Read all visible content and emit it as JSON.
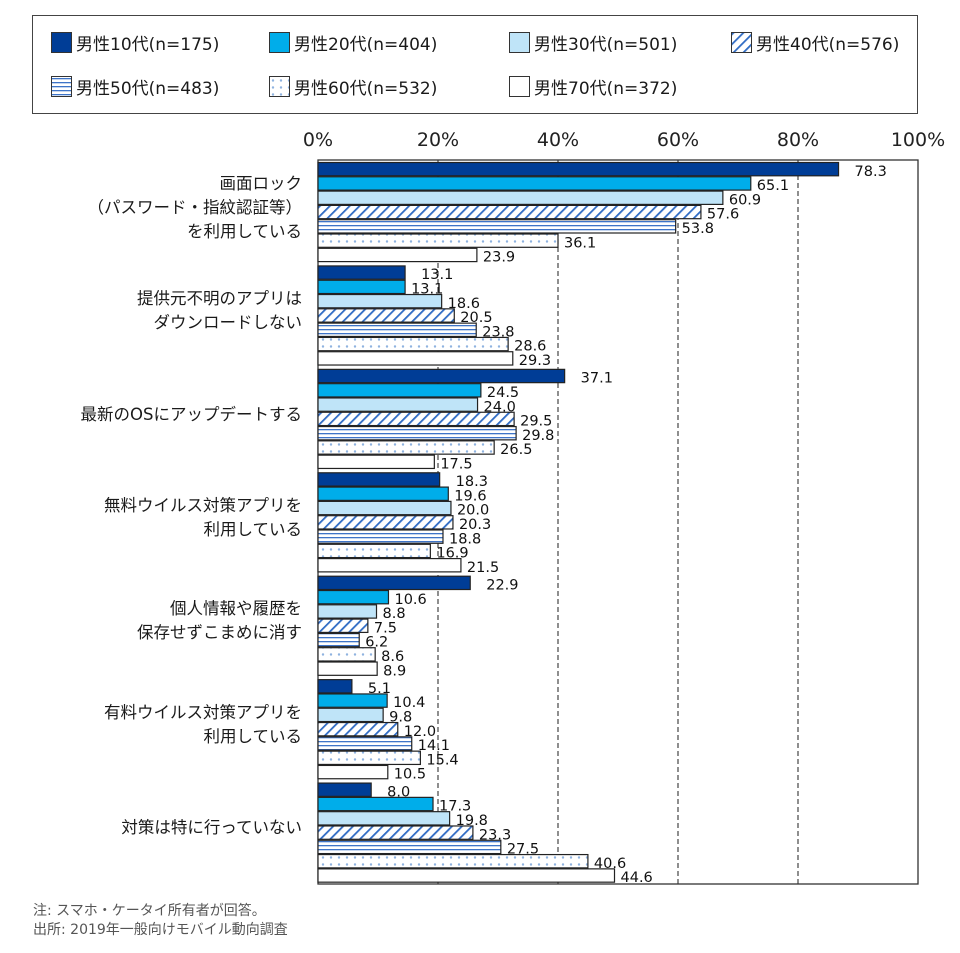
{
  "chart_data": {
    "type": "bar",
    "orientation": "horizontal",
    "xlabel": "",
    "ylabel": "",
    "xlim": [
      0,
      100
    ],
    "tick_labels": [
      "0%",
      "20%",
      "40%",
      "60%",
      "80%",
      "100%"
    ],
    "grid": "dashed vertical at 20%, 40%, 60%, 80%",
    "legend_position": "top",
    "categories": [
      "画面ロック\n（パスワード・指紋認証等）\nを利用している",
      "提供元不明のアプリは\nダウンロードしない",
      "最新のOSにアップデートする",
      "無料ウイルス対策アプリを\n利用している",
      "個人情報や履歴を\n保存せずこまめに消す",
      "有料ウイルス対策アプリを\n利用している",
      "対策は特に行っていない"
    ],
    "series": [
      {
        "name": "男性10代(n=175)",
        "pattern": "solid",
        "color": "#003d96",
        "values": [
          78.3,
          13.1,
          37.1,
          18.3,
          22.9,
          5.1,
          8.0
        ]
      },
      {
        "name": "男性20代(n=404)",
        "pattern": "solid",
        "color": "#00adea",
        "values": [
          65.1,
          13.1,
          24.5,
          19.6,
          10.6,
          10.4,
          17.3
        ]
      },
      {
        "name": "男性30代(n=501)",
        "pattern": "solid",
        "color": "#bfe4f8",
        "values": [
          60.9,
          18.6,
          24.0,
          20.0,
          8.8,
          9.8,
          19.8
        ]
      },
      {
        "name": "男性40代(n=576)",
        "pattern": "diagonal",
        "color": "#2f6bc4",
        "values": [
          57.6,
          20.5,
          29.5,
          20.3,
          7.5,
          12.0,
          23.3
        ]
      },
      {
        "name": "男性50代(n=483)",
        "pattern": "horizontal",
        "color": "#3e74c8",
        "values": [
          53.8,
          23.8,
          29.8,
          18.8,
          6.2,
          14.1,
          27.5
        ]
      },
      {
        "name": "男性60代(n=532)",
        "pattern": "dots",
        "color": "#8fb3e0",
        "values": [
          36.1,
          28.6,
          26.5,
          16.9,
          8.6,
          15.4,
          40.6
        ]
      },
      {
        "name": "男性70代(n=372)",
        "pattern": "solid",
        "color": "#ffffff",
        "values": [
          23.9,
          29.3,
          17.5,
          21.5,
          8.9,
          10.5,
          44.6
        ]
      }
    ],
    "value_labels": [
      [
        "78.3",
        "65.1",
        "60.9",
        "57.6",
        "53.8",
        "36.1",
        "23.9"
      ],
      [
        "13.1",
        "13.1",
        "18.6",
        "20.5",
        "23.8",
        "28.6",
        "29.3"
      ],
      [
        "37.1",
        "24.5",
        "24.0",
        "29.5",
        "29.8",
        "26.5",
        "17.5"
      ],
      [
        "18.3",
        "19.6",
        "20.0",
        "20.3",
        "18.8",
        "16.9",
        "21.5"
      ],
      [
        "22.9",
        "10.6",
        "8.8",
        "7.5",
        "6.2",
        "8.6",
        "8.9"
      ],
      [
        "5.1",
        "10.4",
        "9.8",
        "12.0",
        "14.1",
        "15.4",
        "10.5"
      ],
      [
        "8.0",
        "17.3",
        "19.8",
        "23.3",
        "27.5",
        "40.6",
        "44.6"
      ]
    ]
  },
  "category_lines": [
    [
      "画面ロック",
      "（パスワード・指紋認証等）",
      "を利用している"
    ],
    [
      "提供元不明のアプリは",
      "ダウンロードしない"
    ],
    [
      "最新のOSにアップデートする"
    ],
    [
      "無料ウイルス対策アプリを",
      "利用している"
    ],
    [
      "個人情報や履歴を",
      "保存せずこまめに消す"
    ],
    [
      "有料ウイルス対策アプリを",
      "利用している"
    ],
    [
      "対策は特に行っていない"
    ]
  ],
  "notes": {
    "note": "注: スマホ・ケータイ所有者が回答。",
    "source": "出所: 2019年一般向けモバイル動向調査"
  }
}
